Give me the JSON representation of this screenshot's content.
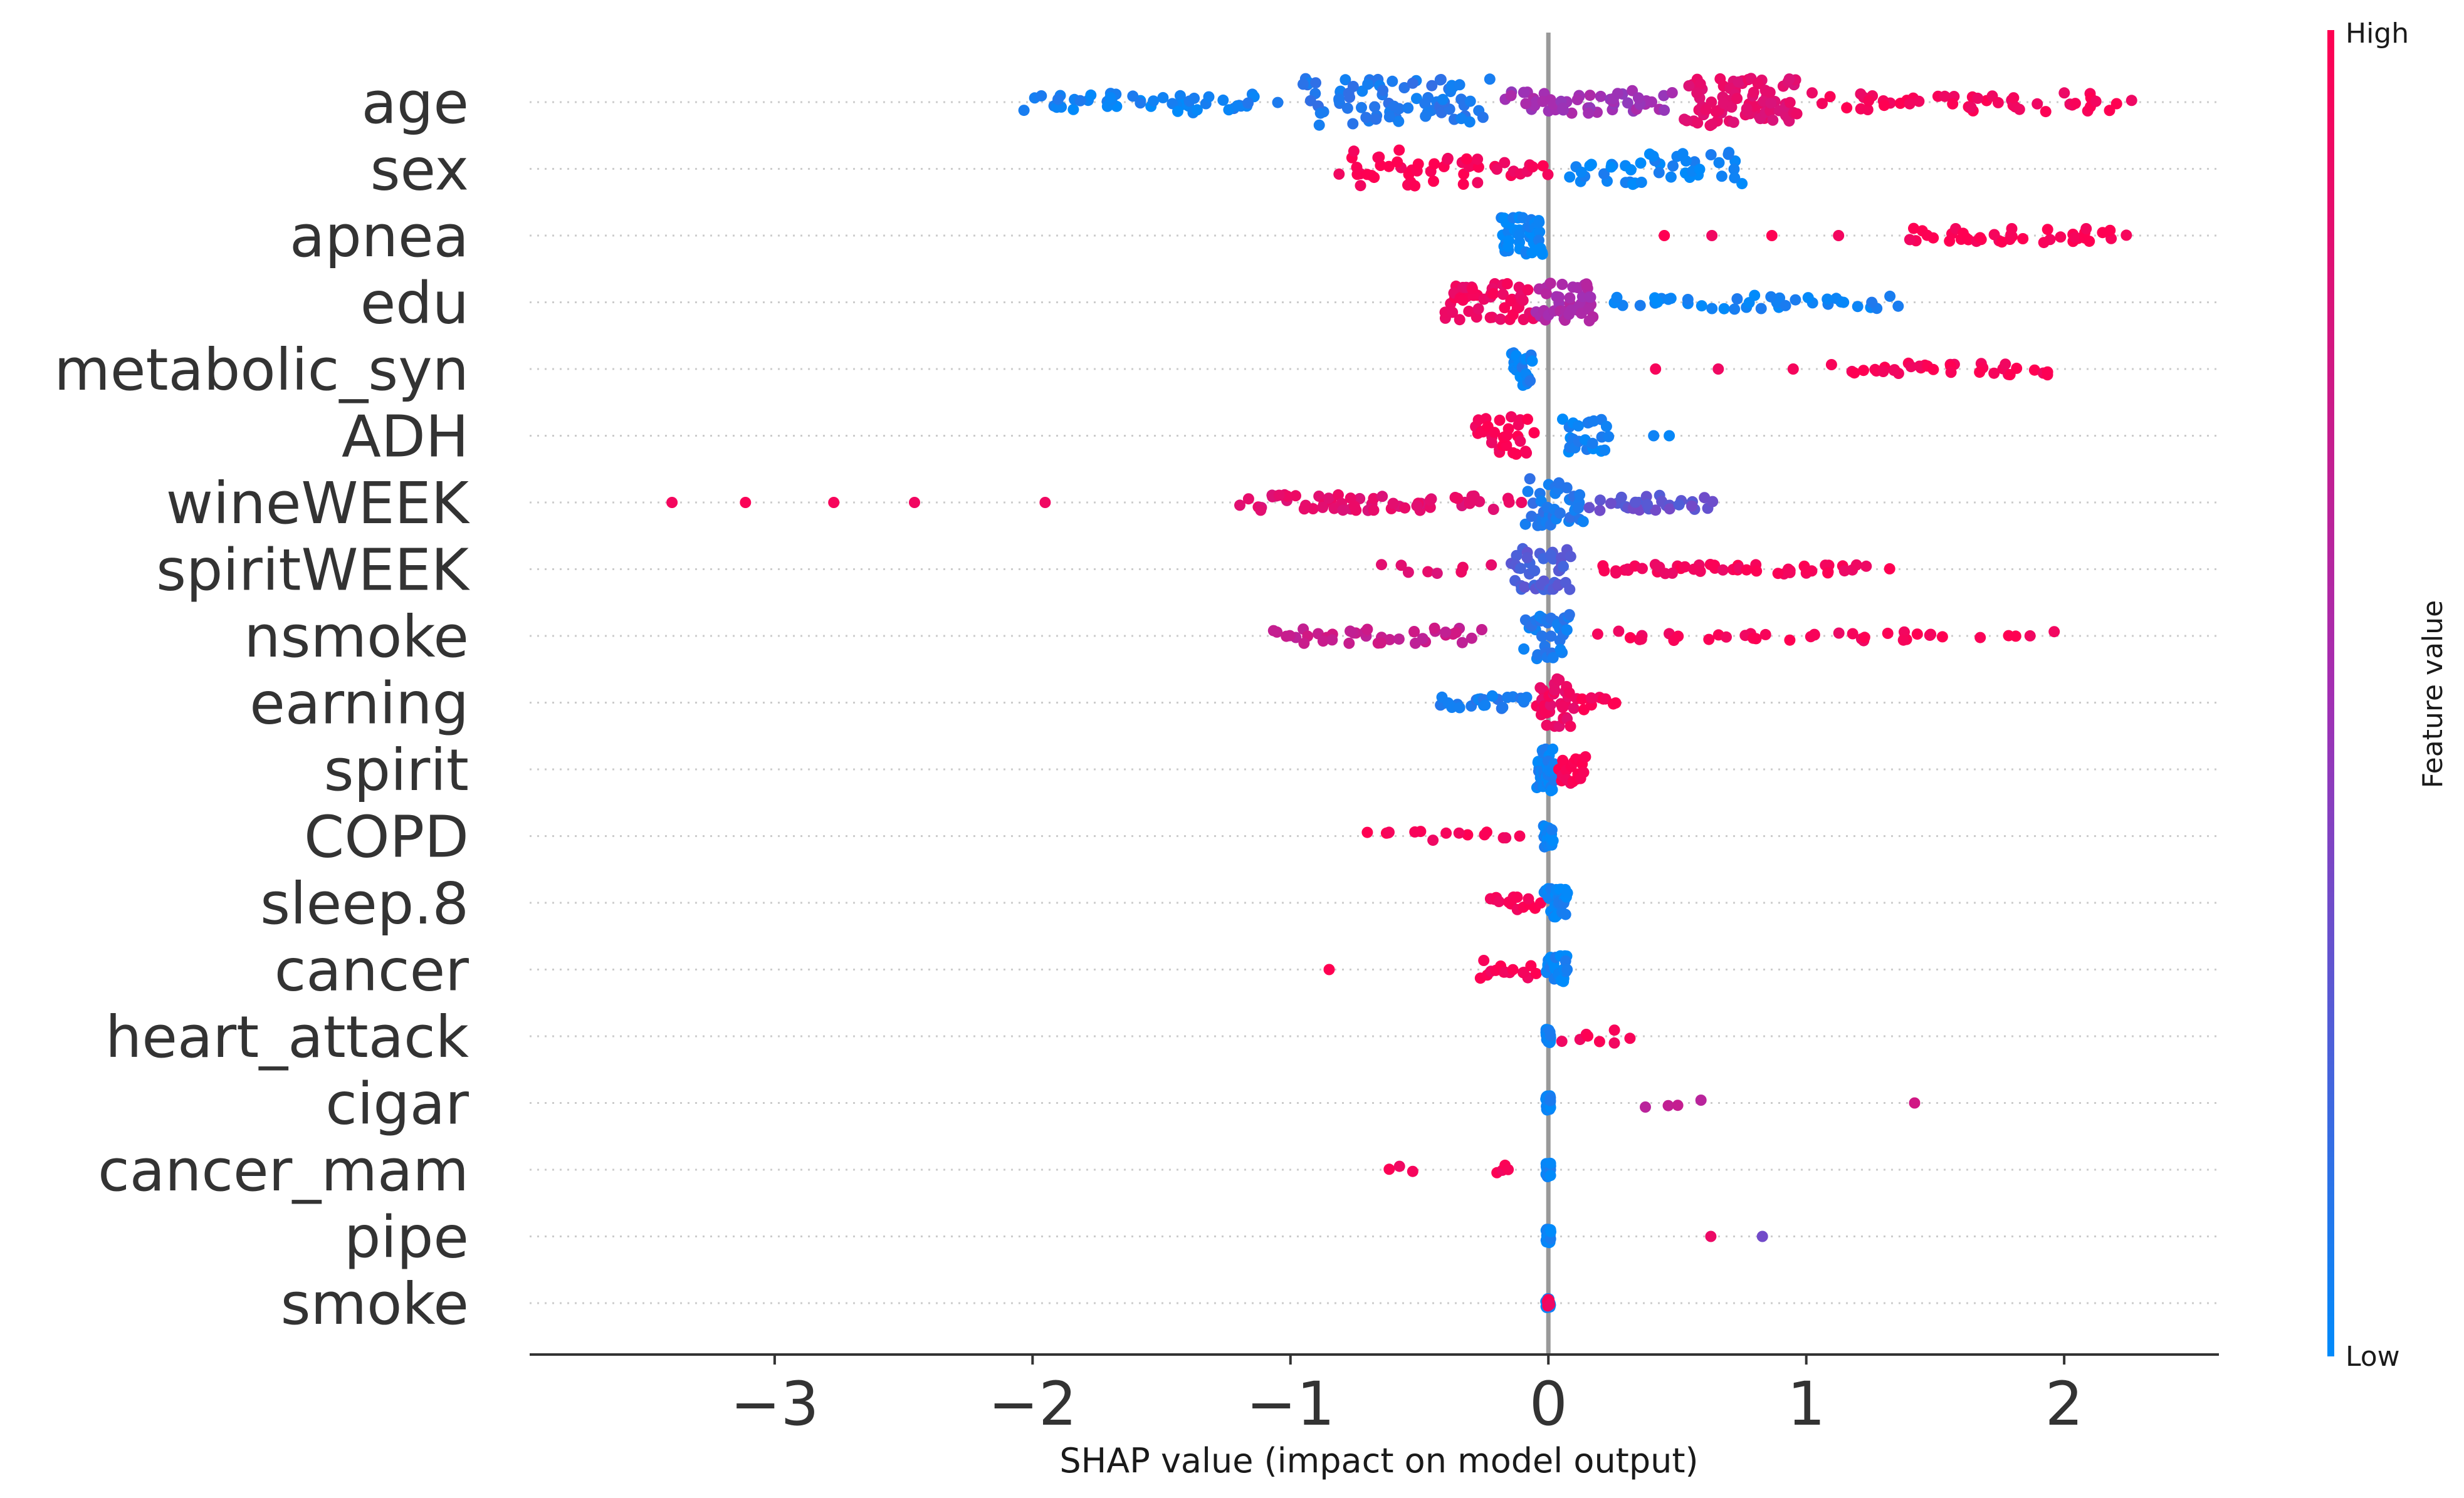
{
  "chart_data": {
    "type": "scatter",
    "subtype": "shap-beeswarm",
    "title": "",
    "xlabel": "SHAP value (impact on model output)",
    "ylabel": "",
    "xlim": [
      -3.95,
      2.6
    ],
    "xticks": [
      -3,
      -2,
      -1,
      0,
      1,
      2
    ],
    "xtick_labels": [
      "−3",
      "−2",
      "−1",
      "0",
      "1",
      "2"
    ],
    "colors": {
      "low": "#008bfb",
      "mid": "#a32fb3",
      "high": "#ff0052",
      "zero_line": "#999999",
      "grid": "#cccccc",
      "axis": "#333333"
    },
    "colorbar": {
      "title": "Feature value",
      "high_label": "High",
      "low_label": "Low"
    },
    "features": [
      {
        "name": "age",
        "clusters": [
          {
            "from": -2.1,
            "to": -1.0,
            "c": 0.05,
            "n": 50,
            "spread": 0.45
          },
          {
            "from": -1.0,
            "to": -0.2,
            "c": 0.1,
            "n": 80,
            "spread": 1.0
          },
          {
            "from": -0.2,
            "to": 0.5,
            "c": 0.5,
            "n": 50,
            "spread": 0.5
          },
          {
            "from": 0.5,
            "to": 1.0,
            "c": 0.85,
            "n": 80,
            "spread": 1.0
          },
          {
            "from": 1.0,
            "to": 2.3,
            "c": 0.95,
            "n": 50,
            "spread": 0.4
          }
        ]
      },
      {
        "name": "sex",
        "clusters": [
          {
            "from": -0.85,
            "to": -0.2,
            "c": 0.98,
            "n": 40,
            "spread": 0.8
          },
          {
            "from": -0.2,
            "to": 0.0,
            "c": 0.95,
            "n": 10,
            "spread": 0.3
          },
          {
            "from": 0.05,
            "to": 0.8,
            "c": 0.03,
            "n": 45,
            "spread": 0.7
          }
        ]
      },
      {
        "name": "apnea",
        "clusters": [
          {
            "from": -0.2,
            "to": 0.0,
            "c": 0.02,
            "n": 45,
            "spread": 0.8
          },
          {
            "from": 0.4,
            "to": 1.2,
            "c": 0.97,
            "n": 4,
            "spread": 0.0
          },
          {
            "from": 1.3,
            "to": 2.3,
            "c": 0.98,
            "n": 40,
            "spread": 0.3
          }
        ]
      },
      {
        "name": "edu",
        "clusters": [
          {
            "from": -0.42,
            "to": -0.05,
            "c": 0.92,
            "n": 50,
            "spread": 0.8
          },
          {
            "from": -0.05,
            "to": 0.2,
            "c": 0.55,
            "n": 40,
            "spread": 0.8
          },
          {
            "from": 0.2,
            "to": 1.4,
            "c": 0.04,
            "n": 40,
            "spread": 0.3
          }
        ]
      },
      {
        "name": "metabolic_syn",
        "clusters": [
          {
            "from": -0.15,
            "to": -0.05,
            "c": 0.05,
            "n": 25,
            "spread": 0.7
          },
          {
            "from": 0.35,
            "to": 1.0,
            "c": 0.96,
            "n": 3,
            "spread": 0.0
          },
          {
            "from": 1.05,
            "to": 2.0,
            "c": 0.97,
            "n": 35,
            "spread": 0.25
          }
        ]
      },
      {
        "name": "ADH",
        "clusters": [
          {
            "from": -0.3,
            "to": -0.05,
            "c": 0.96,
            "n": 30,
            "spread": 0.8
          },
          {
            "from": 0.05,
            "to": 0.25,
            "c": 0.04,
            "n": 25,
            "spread": 0.7
          },
          {
            "from": 0.4,
            "to": 0.47,
            "c": 0.03,
            "n": 2,
            "spread": 0.0
          }
        ]
      },
      {
        "name": "wineWEEK",
        "clusters": [
          {
            "from": -3.65,
            "to": -1.8,
            "c": 0.97,
            "n": 5,
            "spread": 0.0
          },
          {
            "from": -1.28,
            "to": -0.1,
            "c": 0.85,
            "n": 60,
            "spread": 0.35
          },
          {
            "from": -0.1,
            "to": 0.15,
            "c": 0.1,
            "n": 40,
            "spread": 1.0
          },
          {
            "from": 0.15,
            "to": 0.66,
            "c": 0.3,
            "n": 30,
            "spread": 0.35
          }
        ]
      },
      {
        "name": "spiritWEEK",
        "clusters": [
          {
            "from": -0.7,
            "to": -0.2,
            "c": 0.85,
            "n": 8,
            "spread": 0.2
          },
          {
            "from": -0.15,
            "to": 0.1,
            "c": 0.25,
            "n": 45,
            "spread": 0.9
          },
          {
            "from": 0.1,
            "to": 1.35,
            "c": 0.95,
            "n": 50,
            "spread": 0.2
          }
        ]
      },
      {
        "name": "nsmoke",
        "clusters": [
          {
            "from": -1.15,
            "to": -0.2,
            "c": 0.7,
            "n": 40,
            "spread": 0.35
          },
          {
            "from": -0.1,
            "to": 0.1,
            "c": 0.08,
            "n": 40,
            "spread": 1.0
          },
          {
            "from": 0.1,
            "to": 2.0,
            "c": 0.95,
            "n": 40,
            "spread": 0.2
          }
        ]
      },
      {
        "name": "earning",
        "clusters": [
          {
            "from": -0.45,
            "to": -0.05,
            "c": 0.08,
            "n": 25,
            "spread": 0.3
          },
          {
            "from": -0.05,
            "to": 0.1,
            "c": 0.9,
            "n": 35,
            "spread": 1.0
          },
          {
            "from": 0.1,
            "to": 0.27,
            "c": 0.97,
            "n": 10,
            "spread": 0.3
          }
        ]
      },
      {
        "name": "spirit",
        "clusters": [
          {
            "from": -0.05,
            "to": 0.03,
            "c": 0.04,
            "n": 35,
            "spread": 0.9
          },
          {
            "from": 0.03,
            "to": 0.15,
            "c": 0.97,
            "n": 20,
            "spread": 0.6
          }
        ]
      },
      {
        "name": "COPD",
        "clusters": [
          {
            "from": -0.75,
            "to": -0.05,
            "c": 0.97,
            "n": 15,
            "spread": 0.2
          },
          {
            "from": -0.02,
            "to": 0.02,
            "c": 0.03,
            "n": 30,
            "spread": 0.5
          }
        ]
      },
      {
        "name": "sleep.8",
        "clusters": [
          {
            "from": -0.25,
            "to": -0.02,
            "c": 0.97,
            "n": 15,
            "spread": 0.3
          },
          {
            "from": -0.02,
            "to": 0.08,
            "c": 0.03,
            "n": 30,
            "spread": 0.6
          }
        ]
      },
      {
        "name": "cancer",
        "clusters": [
          {
            "from": -0.85,
            "to": -0.85,
            "c": 0.97,
            "n": 1,
            "spread": 0.0
          },
          {
            "from": -0.3,
            "to": -0.02,
            "c": 0.97,
            "n": 15,
            "spread": 0.4
          },
          {
            "from": -0.02,
            "to": 0.08,
            "c": 0.03,
            "n": 30,
            "spread": 0.6
          }
        ]
      },
      {
        "name": "heart_attack",
        "clusters": [
          {
            "from": -0.01,
            "to": 0.01,
            "c": 0.03,
            "n": 40,
            "spread": 0.3
          },
          {
            "from": 0.05,
            "to": 0.33,
            "c": 0.97,
            "n": 8,
            "spread": 0.3
          }
        ]
      },
      {
        "name": "cigar",
        "clusters": [
          {
            "from": -0.01,
            "to": 0.01,
            "c": 0.03,
            "n": 40,
            "spread": 0.3
          },
          {
            "from": 0.37,
            "to": 0.6,
            "c": 0.65,
            "n": 4,
            "spread": 0.2
          },
          {
            "from": 1.42,
            "to": 1.42,
            "c": 0.7,
            "n": 1,
            "spread": 0.0
          }
        ]
      },
      {
        "name": "cancer_mam",
        "clusters": [
          {
            "from": -0.62,
            "to": -0.52,
            "c": 0.97,
            "n": 3,
            "spread": 0.2
          },
          {
            "from": -0.2,
            "to": -0.15,
            "c": 0.97,
            "n": 4,
            "spread": 0.2
          },
          {
            "from": -0.01,
            "to": 0.01,
            "c": 0.03,
            "n": 40,
            "spread": 0.3
          }
        ]
      },
      {
        "name": "pipe",
        "clusters": [
          {
            "from": -0.01,
            "to": 0.01,
            "c": 0.03,
            "n": 40,
            "spread": 0.3
          },
          {
            "from": 0.63,
            "to": 0.63,
            "c": 0.95,
            "n": 1,
            "spread": 0.0
          },
          {
            "from": 0.83,
            "to": 0.83,
            "c": 0.3,
            "n": 1,
            "spread": 0.0
          }
        ]
      },
      {
        "name": "smoke",
        "clusters": [
          {
            "from": -0.01,
            "to": 0.01,
            "c": 0.03,
            "n": 30,
            "spread": 0.2
          },
          {
            "from": -0.005,
            "to": 0.005,
            "c": 0.97,
            "n": 6,
            "spread": 0.2
          }
        ]
      }
    ]
  }
}
